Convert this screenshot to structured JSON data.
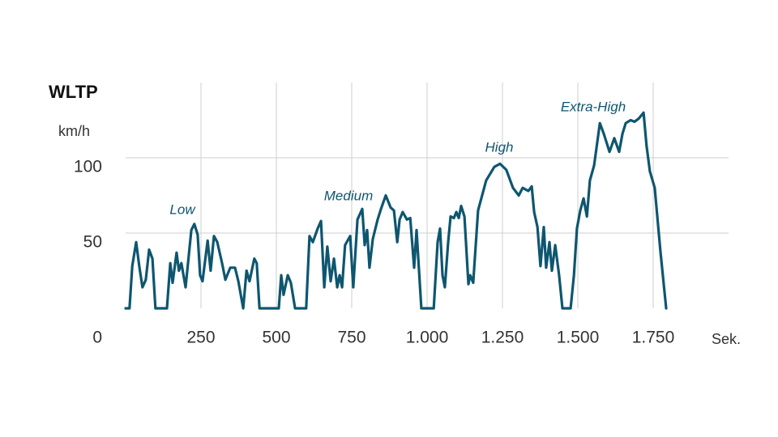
{
  "chart_data": {
    "type": "line",
    "title": "WLTP",
    "y_label": "km/h",
    "x_label": "Sek.",
    "annotations": [
      "Low",
      "Medium",
      "High",
      "Extra-High"
    ],
    "xlim": [
      0,
      2000
    ],
    "ylim": [
      0,
      150
    ],
    "xticks": [
      250,
      500,
      750,
      {
        "value": 1000,
        "label": "1.000"
      },
      {
        "value": 1250,
        "label": "1.250"
      },
      {
        "value": 1500,
        "label": "1.500"
      },
      {
        "value": 1750,
        "label": "1.750"
      }
    ],
    "yticks": [
      0,
      50,
      100
    ],
    "grid": true,
    "series": [
      {
        "name": "WLTP",
        "color": "#0e5670",
        "x": [
          0,
          13,
          22,
          35,
          46,
          56,
          67,
          78,
          89,
          99,
          137,
          148,
          156,
          169,
          177,
          185,
          199,
          218,
          228,
          239,
          247,
          255,
          272,
          282,
          293,
          304,
          320,
          331,
          347,
          363,
          374,
          390,
          401,
          411,
          427,
          435,
          444,
          508,
          516,
          524,
          538,
          548,
          562,
          599,
          610,
          621,
          637,
          648,
          659,
          669,
          680,
          691,
          702,
          710,
          718,
          728,
          745,
          755,
          769,
          785,
          793,
          801,
          809,
          820,
          836,
          847,
          863,
          879,
          890,
          901,
          909,
          919,
          933,
          944,
          957,
          965,
          981,
          1022,
          1035,
          1043,
          1051,
          1059,
          1070,
          1078,
          1089,
          1097,
          1105,
          1113,
          1124,
          1137,
          1143,
          1153,
          1169,
          1196,
          1223,
          1242,
          1263,
          1285,
          1304,
          1317,
          1336,
          1347,
          1355,
          1366,
          1376,
          1387,
          1395,
          1406,
          1414,
          1425,
          1438,
          1449,
          1476,
          1487,
          1497,
          1508,
          1519,
          1530,
          1540,
          1554,
          1573,
          1586,
          1605,
          1621,
          1637,
          1648,
          1659,
          1675,
          1688,
          1702,
          1718,
          1728,
          1739,
          1755,
          1774,
          1793
        ],
        "values": [
          0,
          0,
          28,
          44,
          27,
          14,
          19,
          39,
          33,
          0,
          0,
          30,
          17,
          37,
          25,
          30,
          14,
          52,
          56,
          49,
          22,
          18,
          45,
          25,
          48,
          44,
          30,
          19,
          27,
          27,
          18,
          0,
          25,
          18,
          33,
          30,
          0,
          0,
          22,
          9,
          22,
          17,
          0,
          0,
          48,
          44,
          53,
          58,
          14,
          41,
          18,
          33,
          14,
          22,
          14,
          42,
          48,
          14,
          59,
          66,
          42,
          52,
          27,
          46,
          59,
          66,
          75,
          67,
          65,
          44,
          59,
          64,
          59,
          60,
          27,
          52,
          0,
          0,
          44,
          53,
          22,
          14,
          44,
          61,
          60,
          64,
          60,
          68,
          61,
          16,
          22,
          17,
          65,
          85,
          94,
          96,
          92,
          80,
          75,
          80,
          78,
          81,
          64,
          54,
          28,
          54,
          27,
          44,
          25,
          42,
          22,
          0,
          0,
          22,
          53,
          65,
          73,
          61,
          85,
          95,
          123,
          116,
          104,
          113,
          104,
          116,
          123,
          125,
          124,
          126,
          130,
          108,
          91,
          80,
          38,
          0
        ]
      }
    ]
  }
}
